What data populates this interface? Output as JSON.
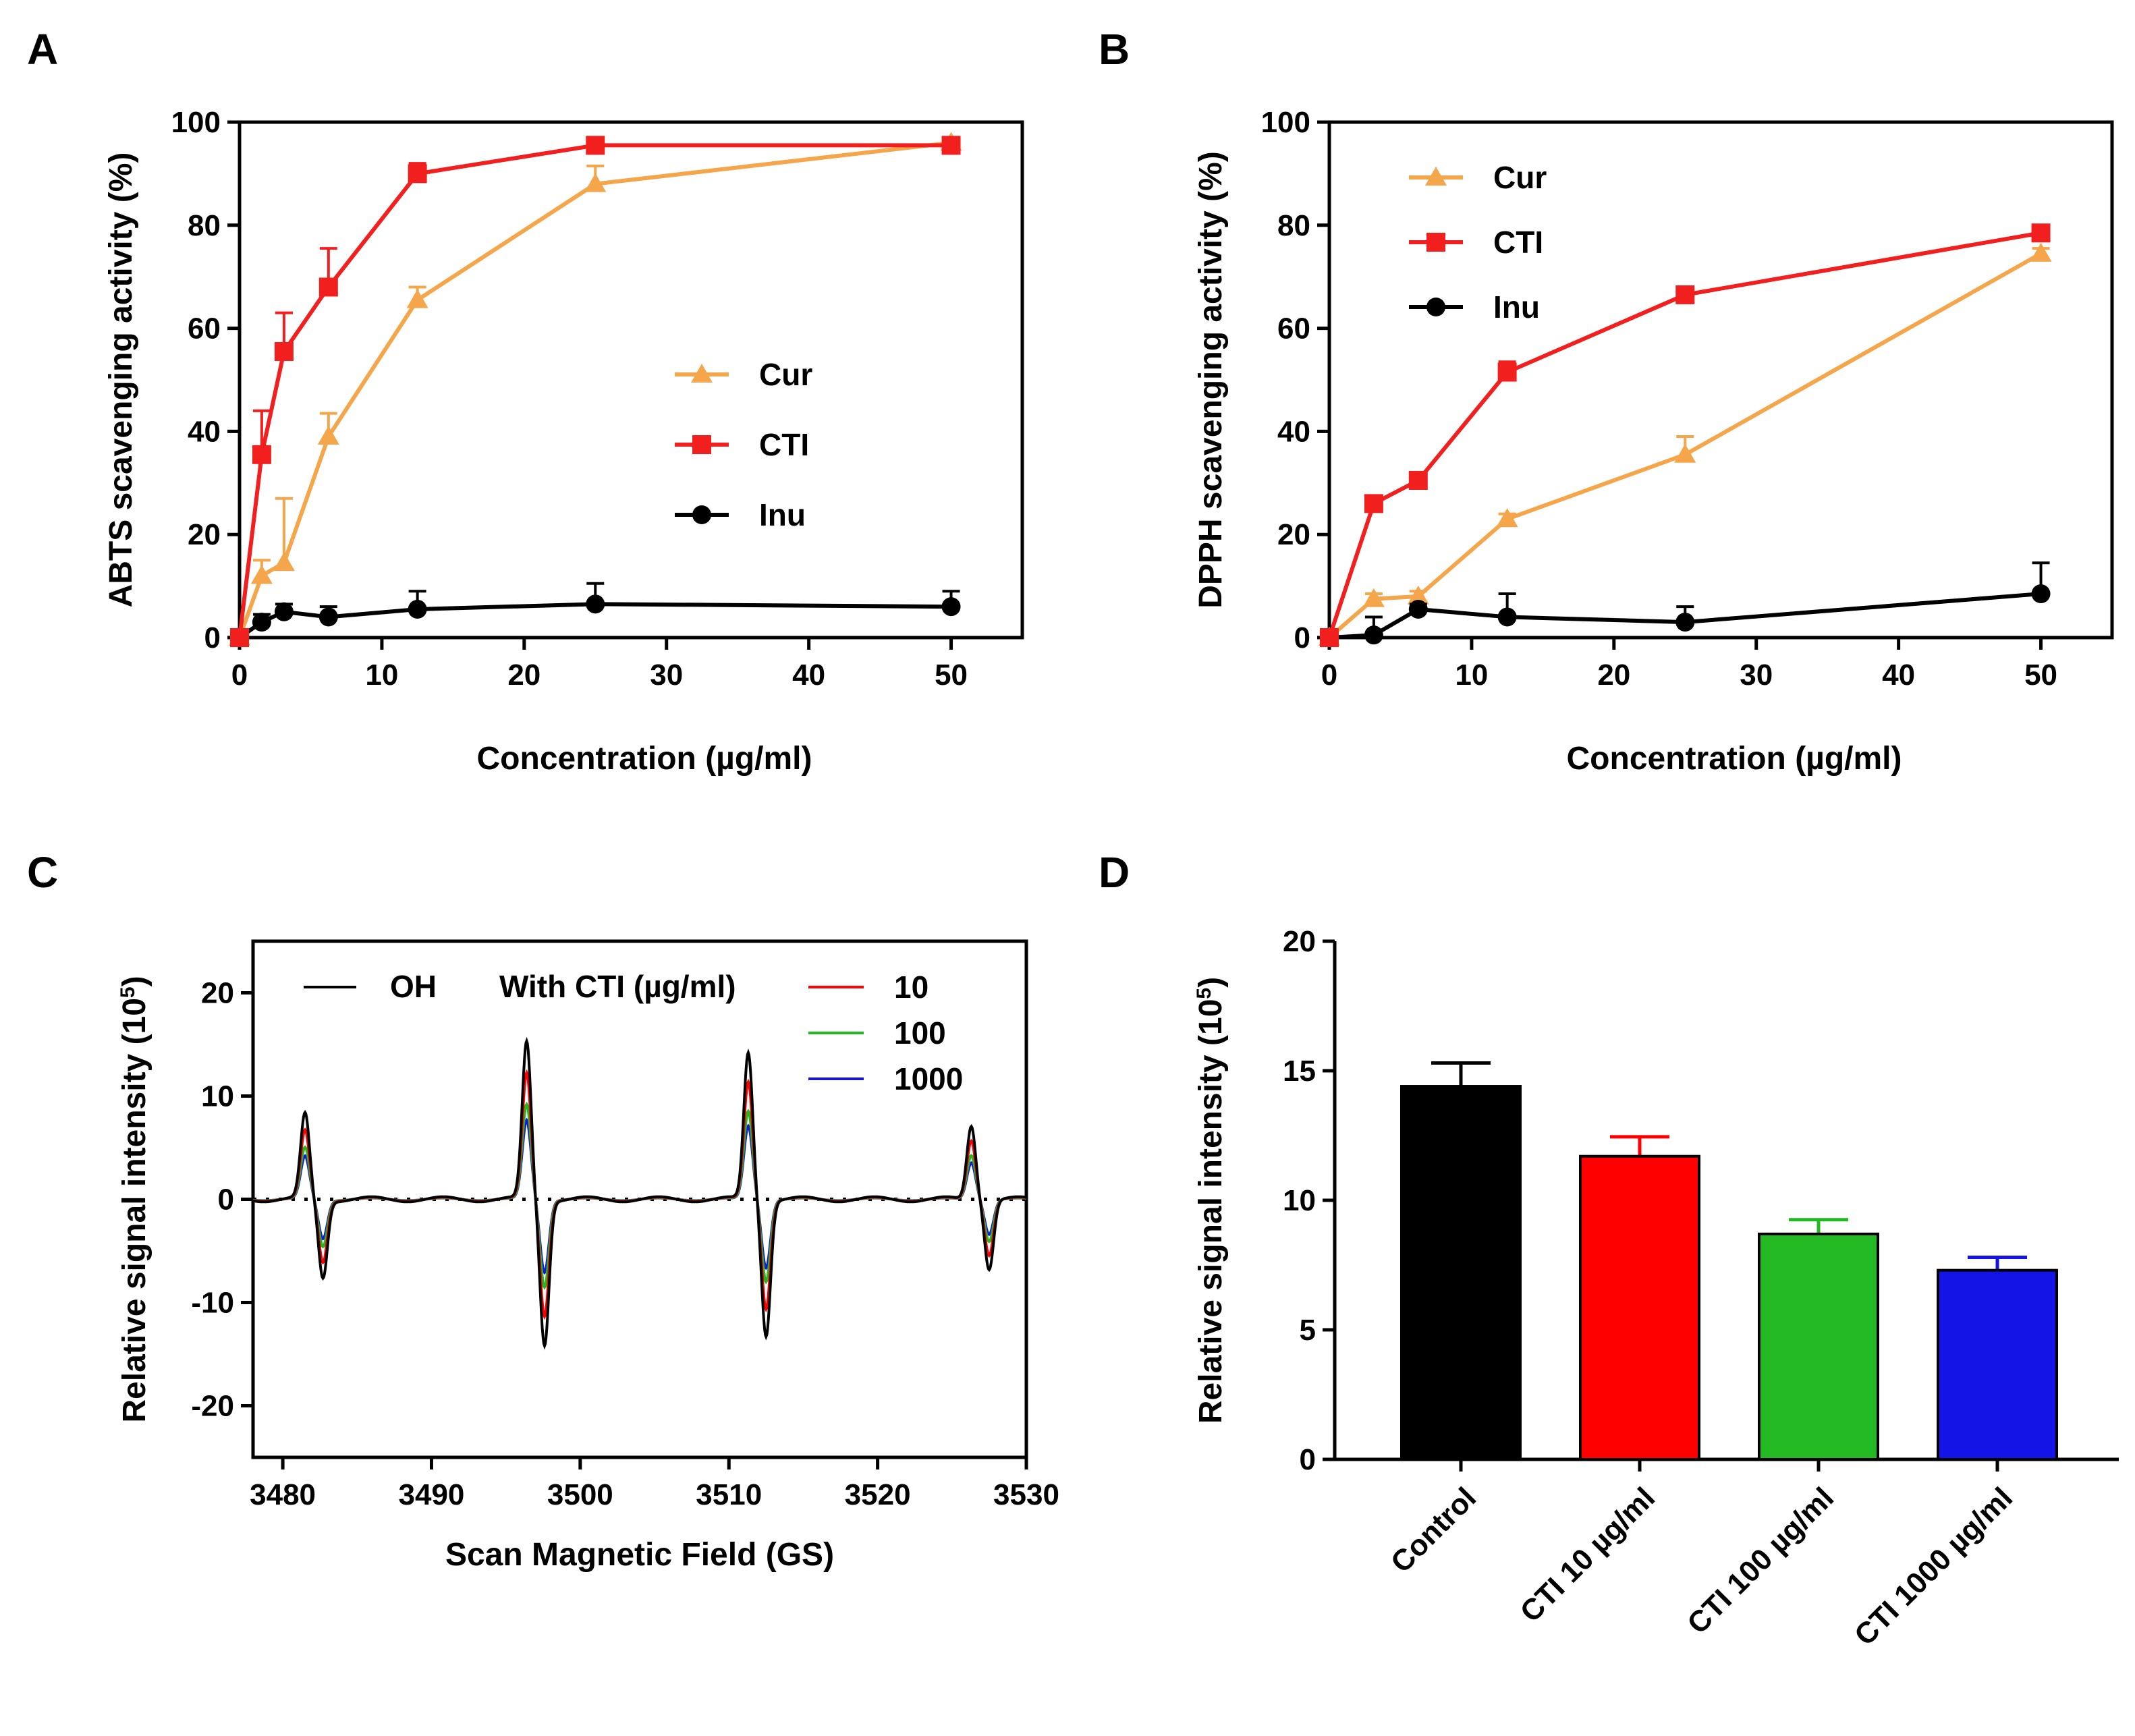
{
  "colors": {
    "Cur": "#F5A54A",
    "CTI": "#F21F1F",
    "Inu": "#000000",
    "OH": "#000000",
    "c10": "#FF0000",
    "c100": "#22B922",
    "c1000": "#1414E6"
  },
  "chart_data": [
    {
      "panel": "A",
      "type": "line",
      "xlabel": "Concentration (µg/ml)",
      "ylabel": "ABTS scavenging activity (%)",
      "xlim": [
        0,
        55
      ],
      "ylim": [
        0,
        100
      ],
      "xticks": [
        0,
        10,
        20,
        30,
        40,
        50
      ],
      "yticks": [
        0,
        20,
        40,
        60,
        80,
        100
      ],
      "legend_position": "center-right",
      "series": [
        {
          "name": "Cur",
          "marker": "triangle",
          "x": [
            0,
            1.56,
            3.125,
            6.25,
            12.5,
            25,
            50
          ],
          "y": [
            0,
            12,
            14.5,
            39,
            65.5,
            88,
            96
          ],
          "err": [
            0,
            3,
            12.5,
            4.5,
            2.5,
            3.5,
            1
          ]
        },
        {
          "name": "CTI",
          "marker": "square",
          "x": [
            0,
            1.56,
            3.125,
            6.25,
            12.5,
            25,
            50
          ],
          "y": [
            0,
            35.5,
            55.5,
            68,
            90,
            95.5,
            95.5
          ],
          "err": [
            0,
            8.5,
            7.5,
            7.5,
            2,
            1,
            1
          ]
        },
        {
          "name": "Inu",
          "marker": "circle",
          "x": [
            0,
            1.56,
            3.125,
            6.25,
            12.5,
            25,
            50
          ],
          "y": [
            0,
            3,
            5,
            4,
            5.5,
            6.5,
            6
          ],
          "err": [
            0,
            1.5,
            1.5,
            2,
            3.5,
            4,
            3
          ]
        }
      ]
    },
    {
      "panel": "B",
      "type": "line",
      "xlabel": "Concentration (µg/ml)",
      "ylabel": "DPPH scavenging activity (%)",
      "xlim": [
        0,
        55
      ],
      "ylim": [
        0,
        100
      ],
      "xticks": [
        0,
        10,
        20,
        30,
        40,
        50
      ],
      "yticks": [
        0,
        20,
        40,
        60,
        80,
        100
      ],
      "legend_position": "top-left",
      "series": [
        {
          "name": "Cur",
          "marker": "triangle",
          "x": [
            0,
            3.125,
            6.25,
            12.5,
            25,
            50
          ],
          "y": [
            0,
            7.5,
            8,
            23,
            35.5,
            74.5
          ],
          "err": [
            0,
            1,
            1,
            1,
            3.5,
            1
          ]
        },
        {
          "name": "CTI",
          "marker": "square",
          "x": [
            0,
            3.125,
            6.25,
            12.5,
            25,
            50
          ],
          "y": [
            0,
            26,
            30.5,
            51.5,
            66.5,
            78.5
          ],
          "err": [
            0,
            1,
            1,
            2,
            1,
            1
          ]
        },
        {
          "name": "Inu",
          "marker": "circle",
          "x": [
            0,
            3.125,
            6.25,
            12.5,
            25,
            50
          ],
          "y": [
            0,
            0.5,
            5.5,
            4,
            3,
            8.5
          ],
          "err": [
            0,
            3.5,
            1,
            4.5,
            3,
            6
          ]
        }
      ]
    },
    {
      "panel": "C",
      "type": "line",
      "xlabel": "Scan Magnetic Field (GS)",
      "ylabel_main": "Relative signal intensity (10",
      "ylabel_sup": "5",
      "ylabel_end": ")",
      "xlim": [
        3478,
        3530
      ],
      "ylim": [
        -25,
        25
      ],
      "xticks": [
        3480,
        3490,
        3500,
        3510,
        3520,
        3530
      ],
      "yticks": [
        -20,
        -10,
        0,
        10,
        20
      ],
      "legend_title": "With CTI (µg/ml)",
      "legend_position": "top",
      "peaks": [
        {
          "center": 3482.1,
          "intensity": 8.2
        },
        {
          "center": 3497.0,
          "intensity": 15.2
        },
        {
          "center": 3511.9,
          "intensity": 14.2
        },
        {
          "center": 3526.9,
          "intensity": 7.2
        }
      ],
      "series": [
        {
          "name": "OH",
          "scale": 1.0
        },
        {
          "name": "10",
          "scale": 0.8
        },
        {
          "name": "100",
          "scale": 0.6
        },
        {
          "name": "1000",
          "scale": 0.5
        }
      ]
    },
    {
      "panel": "D",
      "type": "bar",
      "ylabel_main": "Relative signal intensity (10",
      "ylabel_sup": "5",
      "ylabel_end": ")",
      "ylim": [
        0,
        20
      ],
      "yticks": [
        0,
        5,
        10,
        15,
        20
      ],
      "categories": [
        "Control",
        "CTI 10 µg/ml",
        "CTI 100 µg/ml",
        "CTI 1000 µg/ml"
      ],
      "values": [
        14.4,
        11.7,
        8.7,
        7.3
      ],
      "errors": [
        0.9,
        0.75,
        0.55,
        0.5
      ]
    }
  ]
}
